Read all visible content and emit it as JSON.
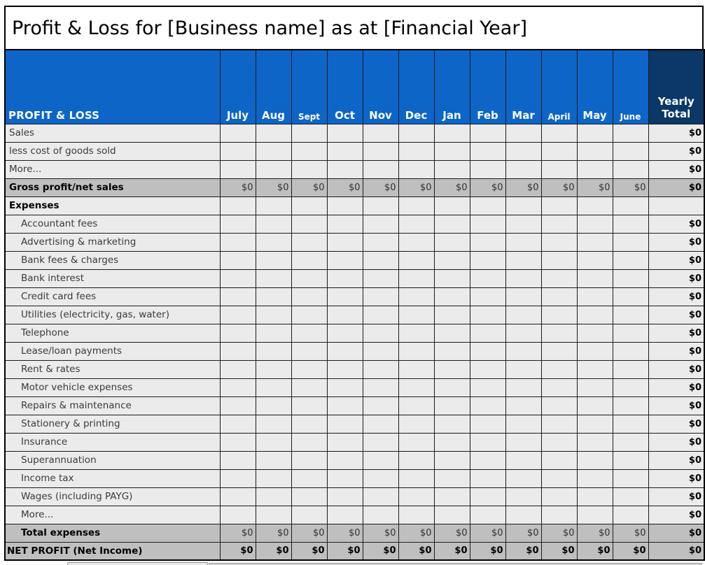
{
  "title": "Profit & Loss for [Business name] as at [Financial Year]",
  "colors": {
    "header_blue": "#0d65c8",
    "header_navy": "#0b3866",
    "row_bg": "#ebebeb",
    "total_row_bg": "#bfbfbf",
    "grid_line": "#1c1c1c",
    "header_text": "#ffffff"
  },
  "header": {
    "label": "PROFIT & LOSS",
    "months": [
      "July",
      "Aug",
      "Sept",
      "Oct",
      "Nov",
      "Dec",
      "Jan",
      "Feb",
      "Mar",
      "April",
      "May",
      "June"
    ],
    "small_months": [
      "Sept",
      "April",
      "June"
    ],
    "yearly_lines": [
      "Yearly",
      "Total"
    ]
  },
  "rows": [
    {
      "label": "Sales",
      "type": "normal",
      "indent": false,
      "values": [
        "",
        "",
        "",
        "",
        "",
        "",
        "",
        "",
        "",
        "",
        "",
        ""
      ],
      "yearly": "$0"
    },
    {
      "label": "less cost of goods sold",
      "type": "normal",
      "indent": false,
      "values": [
        "",
        "",
        "",
        "",
        "",
        "",
        "",
        "",
        "",
        "",
        "",
        ""
      ],
      "yearly": "$0"
    },
    {
      "label": "More...",
      "type": "normal",
      "indent": false,
      "values": [
        "",
        "",
        "",
        "",
        "",
        "",
        "",
        "",
        "",
        "",
        "",
        ""
      ],
      "yearly": "$0"
    },
    {
      "label": "Gross profit/net sales",
      "type": "subtotal",
      "indent": false,
      "values": [
        "$0",
        "$0",
        "$0",
        "$0",
        "$0",
        "$0",
        "$0",
        "$0",
        "$0",
        "$0",
        "$0",
        "$0"
      ],
      "yearly": "$0"
    },
    {
      "label": "Expenses",
      "type": "section",
      "indent": false,
      "values": [
        "",
        "",
        "",
        "",
        "",
        "",
        "",
        "",
        "",
        "",
        "",
        ""
      ],
      "yearly": ""
    },
    {
      "label": "Accountant fees",
      "type": "item",
      "indent": true,
      "values": [
        "",
        "",
        "",
        "",
        "",
        "",
        "",
        "",
        "",
        "",
        "",
        ""
      ],
      "yearly": "$0"
    },
    {
      "label": "Advertising & marketing",
      "type": "item",
      "indent": true,
      "values": [
        "",
        "",
        "",
        "",
        "",
        "",
        "",
        "",
        "",
        "",
        "",
        ""
      ],
      "yearly": "$0"
    },
    {
      "label": "Bank fees & charges",
      "type": "item",
      "indent": true,
      "values": [
        "",
        "",
        "",
        "",
        "",
        "",
        "",
        "",
        "",
        "",
        "",
        ""
      ],
      "yearly": "$0"
    },
    {
      "label": "Bank interest",
      "type": "item",
      "indent": true,
      "values": [
        "",
        "",
        "",
        "",
        "",
        "",
        "",
        "",
        "",
        "",
        "",
        ""
      ],
      "yearly": "$0"
    },
    {
      "label": "Credit card fees",
      "type": "item",
      "indent": true,
      "values": [
        "",
        "",
        "",
        "",
        "",
        "",
        "",
        "",
        "",
        "",
        "",
        ""
      ],
      "yearly": "$0"
    },
    {
      "label": "Utilities (electricity, gas, water)",
      "type": "item",
      "indent": true,
      "values": [
        "",
        "",
        "",
        "",
        "",
        "",
        "",
        "",
        "",
        "",
        "",
        ""
      ],
      "yearly": "$0"
    },
    {
      "label": "Telephone",
      "type": "item",
      "indent": true,
      "values": [
        "",
        "",
        "",
        "",
        "",
        "",
        "",
        "",
        "",
        "",
        "",
        ""
      ],
      "yearly": "$0"
    },
    {
      "label": "Lease/loan payments",
      "type": "item",
      "indent": true,
      "values": [
        "",
        "",
        "",
        "",
        "",
        "",
        "",
        "",
        "",
        "",
        "",
        ""
      ],
      "yearly": "$0"
    },
    {
      "label": "Rent & rates",
      "type": "item",
      "indent": true,
      "values": [
        "",
        "",
        "",
        "",
        "",
        "",
        "",
        "",
        "",
        "",
        "",
        ""
      ],
      "yearly": "$0"
    },
    {
      "label": "Motor vehicle expenses",
      "type": "item",
      "indent": true,
      "values": [
        "",
        "",
        "",
        "",
        "",
        "",
        "",
        "",
        "",
        "",
        "",
        ""
      ],
      "yearly": "$0"
    },
    {
      "label": "Repairs & maintenance",
      "type": "item",
      "indent": true,
      "values": [
        "",
        "",
        "",
        "",
        "",
        "",
        "",
        "",
        "",
        "",
        "",
        ""
      ],
      "yearly": "$0"
    },
    {
      "label": "Stationery & printing",
      "type": "item",
      "indent": true,
      "values": [
        "",
        "",
        "",
        "",
        "",
        "",
        "",
        "",
        "",
        "",
        "",
        ""
      ],
      "yearly": "$0"
    },
    {
      "label": "Insurance",
      "type": "item",
      "indent": true,
      "values": [
        "",
        "",
        "",
        "",
        "",
        "",
        "",
        "",
        "",
        "",
        "",
        ""
      ],
      "yearly": "$0"
    },
    {
      "label": "Superannuation",
      "type": "item",
      "indent": true,
      "values": [
        "",
        "",
        "",
        "",
        "",
        "",
        "",
        "",
        "",
        "",
        "",
        ""
      ],
      "yearly": "$0"
    },
    {
      "label": "Income tax",
      "type": "item",
      "indent": true,
      "values": [
        "",
        "",
        "",
        "",
        "",
        "",
        "",
        "",
        "",
        "",
        "",
        ""
      ],
      "yearly": "$0"
    },
    {
      "label": "Wages (including PAYG)",
      "type": "item",
      "indent": true,
      "values": [
        "",
        "",
        "",
        "",
        "",
        "",
        "",
        "",
        "",
        "",
        "",
        ""
      ],
      "yearly": "$0"
    },
    {
      "label": "More...",
      "type": "item",
      "indent": true,
      "values": [
        "",
        "",
        "",
        "",
        "",
        "",
        "",
        "",
        "",
        "",
        "",
        ""
      ],
      "yearly": "$0"
    },
    {
      "label": "Total expenses",
      "type": "subtotal",
      "indent": true,
      "values": [
        "$0",
        "$0",
        "$0",
        "$0",
        "$0",
        "$0",
        "$0",
        "$0",
        "$0",
        "$0",
        "$0",
        "$0"
      ],
      "yearly": "$0"
    },
    {
      "label": "NET PROFIT (Net Income)",
      "type": "grand",
      "indent": false,
      "values": [
        "$0",
        "$0",
        "$0",
        "$0",
        "$0",
        "$0",
        "$0",
        "$0",
        "$0",
        "$0",
        "$0",
        "$0"
      ],
      "yearly": "$0"
    }
  ]
}
